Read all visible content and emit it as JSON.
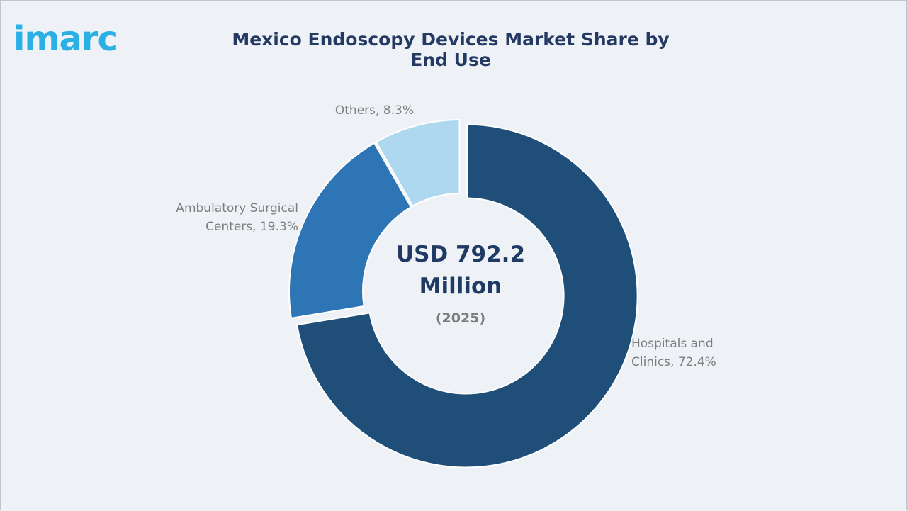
{
  "brand": {
    "logo_text": "imarc"
  },
  "colors": {
    "background": "#eef2f7",
    "logo": "#2bb0e6",
    "title": "#243a63",
    "label": "#7d7d7d"
  },
  "chart_data": {
    "type": "pie",
    "variant": "donut",
    "title": "Mexico Endoscopy Devices Market Share by End Use",
    "center_value": [
      "USD 792.2",
      "Million"
    ],
    "center_year": "(2025)",
    "slices": [
      {
        "label": [
          "Hospitals and",
          "Clinics, 72.4%"
        ],
        "value": 72.4,
        "color": "#1f4e79",
        "exploded": true
      },
      {
        "label": [
          "Ambulatory Surgical",
          "Centers, 19.3%"
        ],
        "value": 19.3,
        "color": "#2e75b6",
        "exploded": false
      },
      {
        "label": [
          "Others, 8.3%"
        ],
        "value": 8.3,
        "color": "#add8f0",
        "exploded": false
      }
    ],
    "unit": "%"
  }
}
